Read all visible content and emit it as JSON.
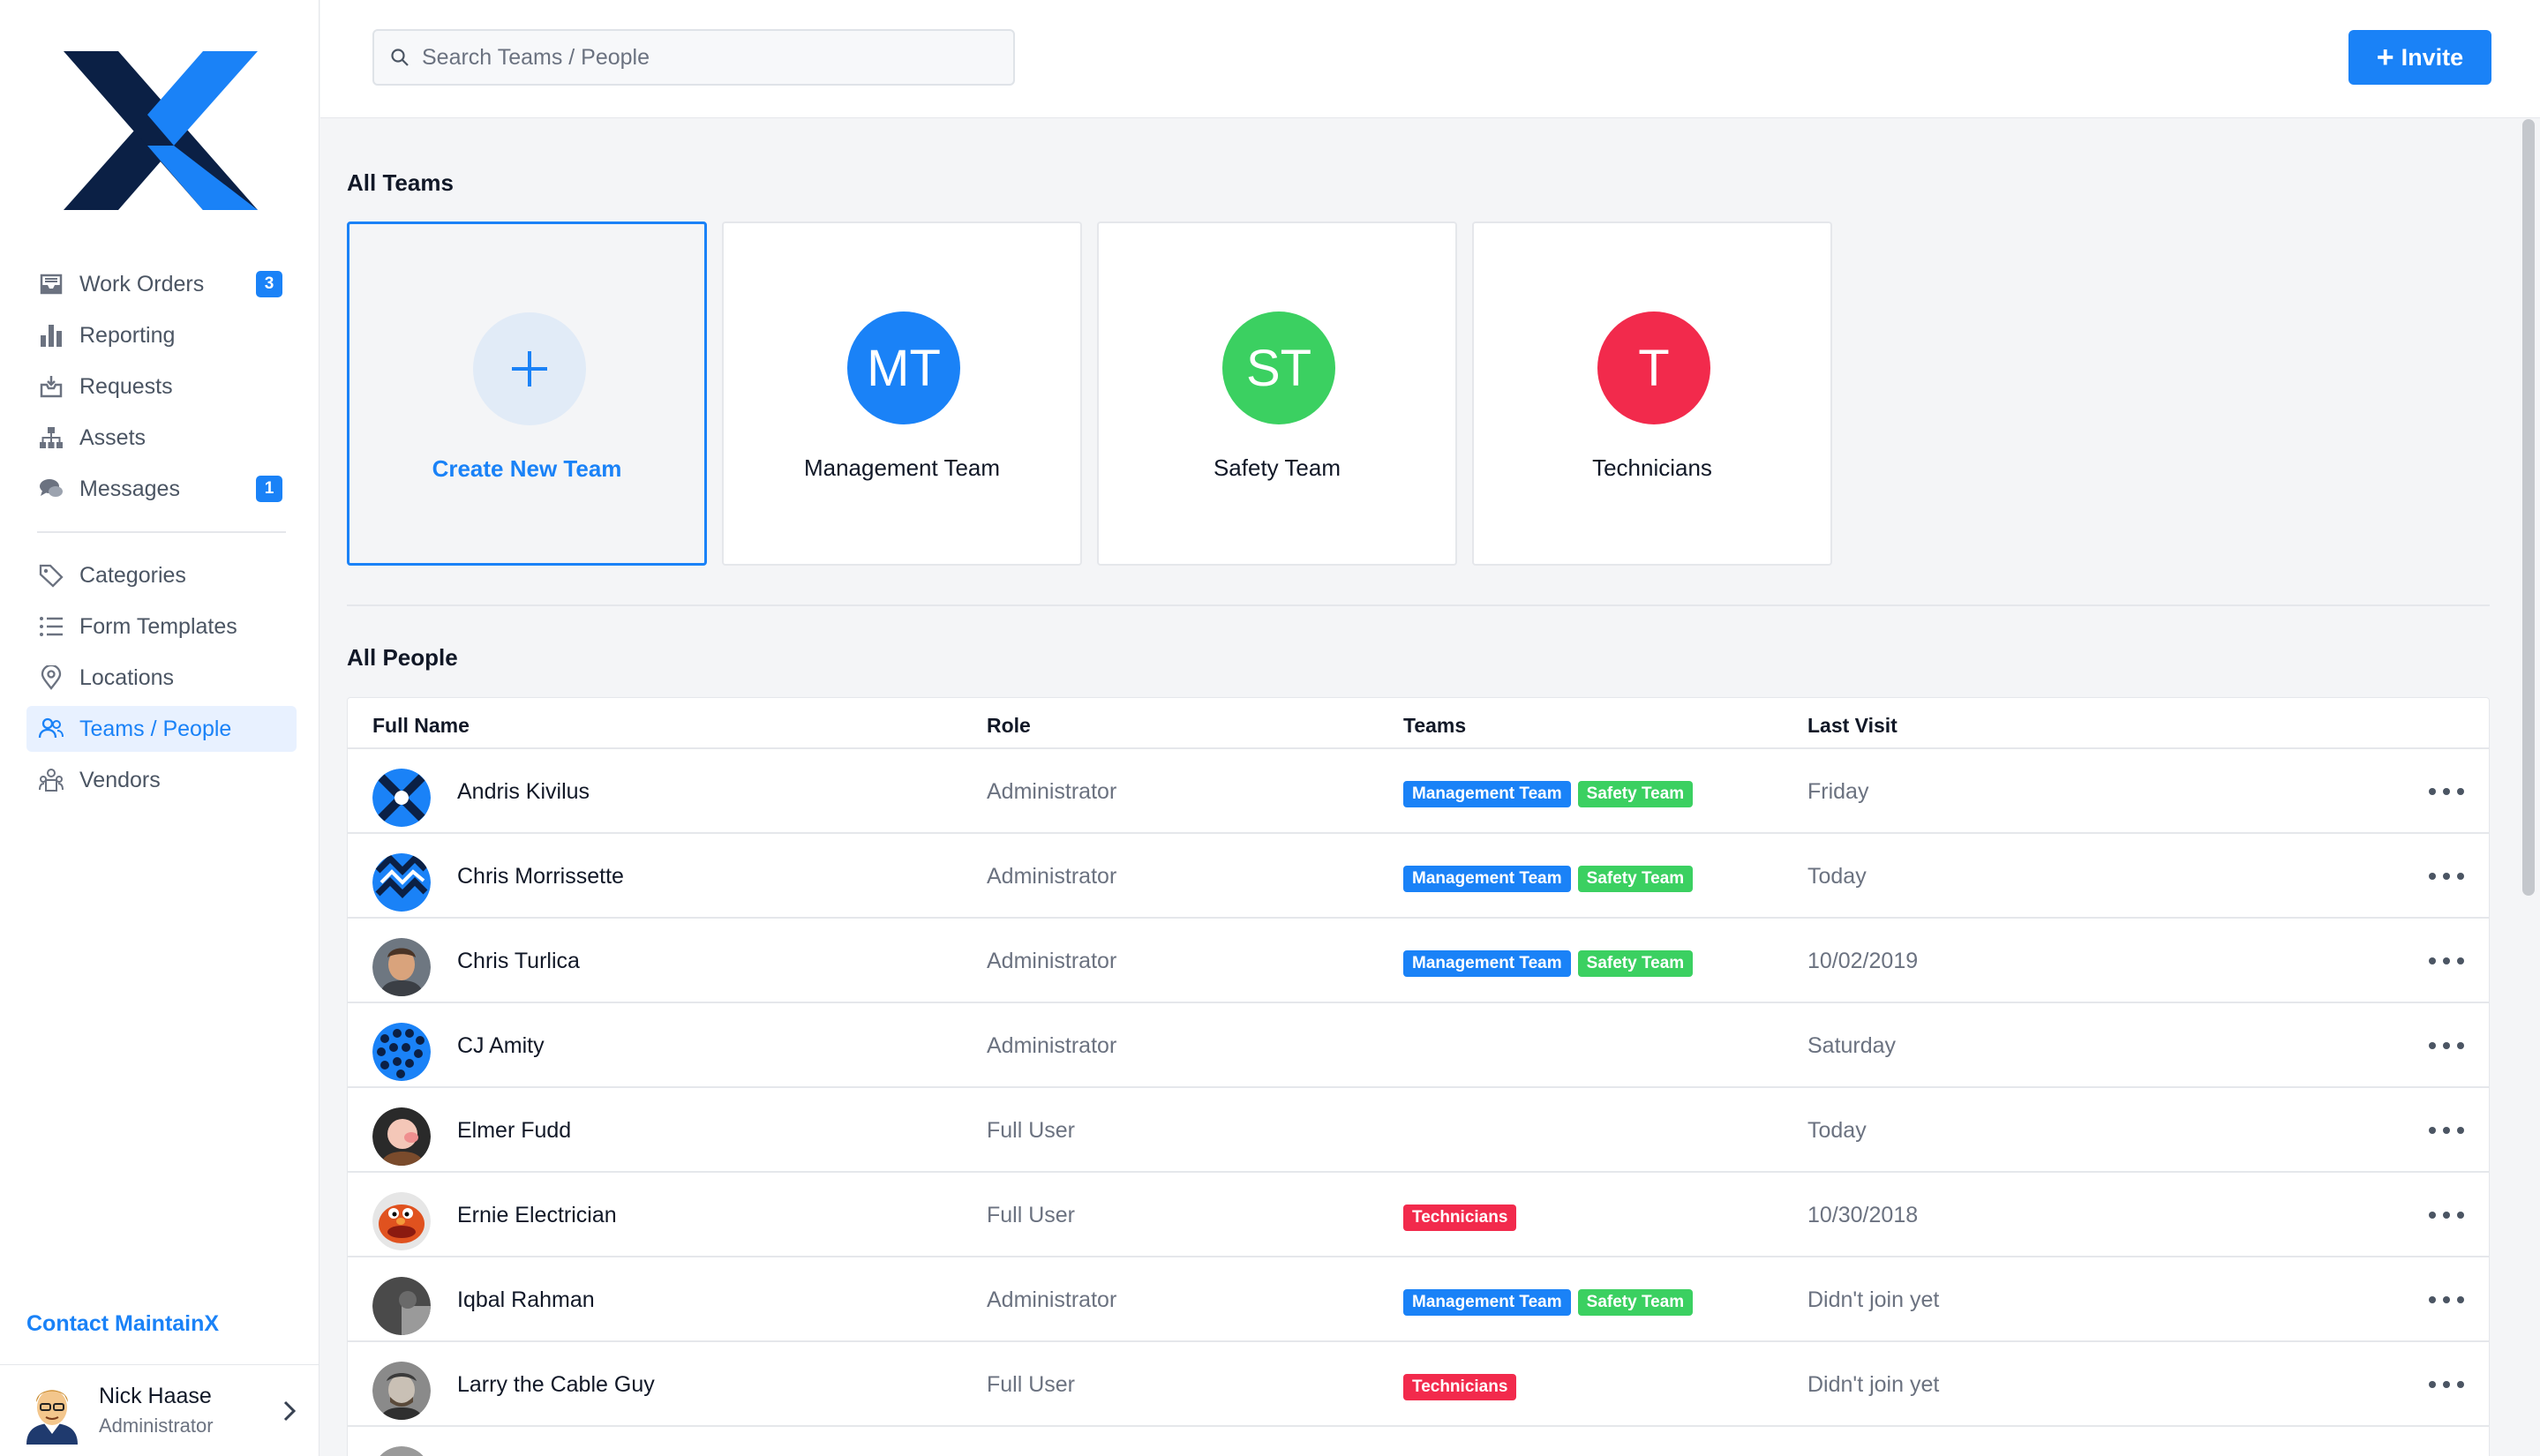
{
  "sidebar": {
    "nav": [
      {
        "label": "Work Orders",
        "icon": "inbox-icon",
        "badge": "3"
      },
      {
        "label": "Reporting",
        "icon": "bar-chart-icon"
      },
      {
        "label": "Requests",
        "icon": "inbox-download-icon"
      },
      {
        "label": "Assets",
        "icon": "sitemap-icon"
      },
      {
        "label": "Messages",
        "icon": "chat-bubbles-icon",
        "badge": "1"
      },
      {
        "label": "Categories",
        "icon": "tag-icon"
      },
      {
        "label": "Form Templates",
        "icon": "list-icon"
      },
      {
        "label": "Locations",
        "icon": "map-pin-icon"
      },
      {
        "label": "Teams / People",
        "icon": "users-icon",
        "active": true
      },
      {
        "label": "Vendors",
        "icon": "vendors-icon"
      }
    ],
    "contact_label": "Contact MaintainX",
    "user": {
      "name": "Nick Haase",
      "role": "Administrator"
    }
  },
  "topbar": {
    "search_placeholder": "Search Teams / People",
    "invite_label": "Invite"
  },
  "teams": {
    "title": "All Teams",
    "create_label": "Create New Team",
    "items": [
      {
        "initials": "MT",
        "name": "Management Team",
        "color": "#1a82f7"
      },
      {
        "initials": "ST",
        "name": "Safety Team",
        "color": "#3bd061"
      },
      {
        "initials": "T",
        "name": "Technicians",
        "color": "#f22a4c"
      }
    ]
  },
  "people": {
    "title": "All People",
    "columns": {
      "name": "Full Name",
      "role": "Role",
      "teams": "Teams",
      "visit": "Last Visit"
    },
    "rows": [
      {
        "name": "Andris Kivilus",
        "role": "Administrator",
        "teams": [
          "Management Team",
          "Safety Team"
        ],
        "visit": "Friday"
      },
      {
        "name": "Chris Morrissette",
        "role": "Administrator",
        "teams": [
          "Management Team",
          "Safety Team"
        ],
        "visit": "Today"
      },
      {
        "name": "Chris Turlica",
        "role": "Administrator",
        "teams": [
          "Management Team",
          "Safety Team"
        ],
        "visit": "10/02/2019"
      },
      {
        "name": "CJ Amity",
        "role": "Administrator",
        "teams": [],
        "visit": "Saturday"
      },
      {
        "name": "Elmer Fudd",
        "role": "Full User",
        "teams": [],
        "visit": "Today"
      },
      {
        "name": "Ernie Electrician",
        "role": "Full User",
        "teams": [
          "Technicians"
        ],
        "visit": "10/30/2018"
      },
      {
        "name": "Iqbal Rahman",
        "role": "Administrator",
        "teams": [
          "Management Team",
          "Safety Team"
        ],
        "visit": "Didn't join yet"
      },
      {
        "name": "Larry the Cable Guy",
        "role": "Full User",
        "teams": [
          "Technicians"
        ],
        "visit": "Didn't join yet"
      }
    ]
  },
  "colors": {
    "accent": "#1a82f7",
    "management": "#1a82f7",
    "safety": "#3bd061",
    "technicians": "#f22a4c"
  }
}
